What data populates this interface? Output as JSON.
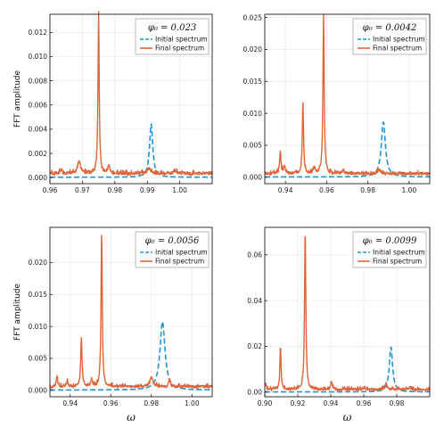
{
  "colors": {
    "initial": "#1f96d8",
    "final": "#e0643a",
    "grid": "#e4e4e4",
    "axis": "#000000"
  },
  "chart_data": [
    {
      "type": "line",
      "title": "",
      "legend_title": "φ₀ = 0.023",
      "legend_position": "top-right",
      "ylabel": "FFT amplitude",
      "xlabel": "",
      "xlim": [
        0.96,
        1.01
      ],
      "ylim": [
        -0.0005,
        0.0135
      ],
      "xticks": [
        0.96,
        0.97,
        0.98,
        0.99,
        1.0
      ],
      "xtick_labels": [
        "0.96",
        "0.97",
        "0.98",
        "0.99",
        "1.00"
      ],
      "yticks": [
        0,
        0.002,
        0.004,
        0.006,
        0.008,
        0.01,
        0.012
      ],
      "ytick_labels": [
        "0.000",
        "0.002",
        "0.004",
        "0.006",
        "0.008",
        "0.010",
        "0.012"
      ],
      "grid": true,
      "series": [
        {
          "name": "Initial spectrum",
          "style": "dashed",
          "peaks": [
            [
              0.9912,
              0.0044,
              0.0006
            ]
          ],
          "base": 3e-05,
          "noise": 0
        },
        {
          "name": "Final spectrum",
          "style": "solid",
          "peaks": [
            [
              0.975,
              0.0131,
              0.00022
            ],
            [
              0.969,
              0.001,
              0.0005
            ],
            [
              0.9782,
              0.0006,
              0.0004
            ],
            [
              0.9905,
              0.0004,
              0.0005
            ],
            [
              0.9635,
              0.0003,
              0.0004
            ],
            [
              0.9985,
              0.0003,
              0.0004
            ]
          ],
          "base": 0.0003,
          "noise": 0.00012
        }
      ]
    },
    {
      "type": "line",
      "title": "",
      "legend_title": "φ₀ = 0.0042",
      "legend_position": "top-right",
      "ylabel": "",
      "xlabel": "",
      "xlim": [
        0.93,
        1.01
      ],
      "ylim": [
        -0.001,
        0.0255
      ],
      "xticks": [
        0.94,
        0.96,
        0.98,
        1.0
      ],
      "xtick_labels": [
        "0.94",
        "0.96",
        "0.98",
        "1.00"
      ],
      "yticks": [
        0,
        0.005,
        0.01,
        0.015,
        0.02,
        0.025
      ],
      "ytick_labels": [
        "0.000",
        "0.005",
        "0.010",
        "0.015",
        "0.020",
        "0.025"
      ],
      "grid": true,
      "series": [
        {
          "name": "Initial spectrum",
          "style": "dashed",
          "peaks": [
            [
              0.9875,
              0.0086,
              0.0012
            ]
          ],
          "base": 5e-05,
          "noise": 0
        },
        {
          "name": "Final spectrum",
          "style": "solid",
          "peaks": [
            [
              0.9585,
              0.0247,
              0.00035
            ],
            [
              0.9485,
              0.0114,
              0.00035
            ],
            [
              0.9375,
              0.0034,
              0.0004
            ],
            [
              0.9395,
              0.0012,
              0.0004
            ],
            [
              0.954,
              0.0008,
              0.0005
            ],
            [
              0.968,
              0.0005,
              0.0005
            ],
            [
              0.9855,
              0.0006,
              0.0008
            ]
          ],
          "base": 0.0005,
          "noise": 0.0002
        }
      ]
    },
    {
      "type": "line",
      "title": "",
      "legend_title": "φ₀ = 0.0056",
      "legend_position": "top-right",
      "ylabel": "FFT amplitude",
      "xlabel": "ω",
      "xlim": [
        0.93,
        1.01
      ],
      "ylim": [
        -0.001,
        0.0255
      ],
      "xticks": [
        0.94,
        0.96,
        0.98,
        1.0
      ],
      "xtick_labels": [
        "0.94",
        "0.96",
        "0.98",
        "1.00"
      ],
      "yticks": [
        0,
        0.005,
        0.01,
        0.015,
        0.02
      ],
      "ytick_labels": [
        "0.000",
        "0.005",
        "0.010",
        "0.015",
        "0.020"
      ],
      "grid": true,
      "series": [
        {
          "name": "Initial spectrum",
          "style": "dashed",
          "peaks": [
            [
              0.9855,
              0.0107,
              0.0015
            ]
          ],
          "base": 5e-05,
          "noise": 0
        },
        {
          "name": "Final spectrum",
          "style": "solid",
          "peaks": [
            [
              0.9555,
              0.0244,
              0.00035
            ],
            [
              0.9455,
              0.0076,
              0.0004
            ],
            [
              0.9335,
              0.0017,
              0.0004
            ],
            [
              0.9385,
              0.0008,
              0.0005
            ],
            [
              0.9505,
              0.0011,
              0.0005
            ],
            [
              0.98,
              0.0015,
              0.001
            ],
            [
              0.989,
              0.001,
              0.0006
            ]
          ],
          "base": 0.0005,
          "noise": 0.0002
        }
      ]
    },
    {
      "type": "line",
      "title": "",
      "legend_title": "φ₀ = 0.0099",
      "legend_position": "top-right",
      "ylabel": "",
      "xlabel": "ω",
      "xlim": [
        0.9,
        1.0
      ],
      "ylim": [
        -0.002,
        0.072
      ],
      "xticks": [
        0.9,
        0.92,
        0.94,
        0.96,
        0.98
      ],
      "xtick_labels": [
        "0.90",
        "0.92",
        "0.94",
        "0.96",
        "0.98"
      ],
      "yticks": [
        0,
        0.02,
        0.04,
        0.06
      ],
      "ytick_labels": [
        "0.00",
        "0.02",
        "0.04",
        "0.06"
      ],
      "grid": true,
      "series": [
        {
          "name": "Initial spectrum",
          "style": "dashed",
          "peaks": [
            [
              0.9765,
              0.0196,
              0.0012
            ]
          ],
          "base": 0.0001,
          "noise": 0
        },
        {
          "name": "Final spectrum",
          "style": "solid",
          "peaks": [
            [
              0.9245,
              0.07,
              0.00045
            ],
            [
              0.9095,
              0.019,
              0.0004
            ],
            [
              0.9005,
              0.0025,
              0.0006
            ],
            [
              0.9405,
              0.0038,
              0.0005
            ],
            [
              0.96,
              0.001,
              0.0008
            ],
            [
              0.9735,
              0.0022,
              0.0008
            ],
            [
              0.988,
              0.001,
              0.0008
            ]
          ],
          "base": 0.001,
          "noise": 0.0005
        }
      ]
    }
  ]
}
